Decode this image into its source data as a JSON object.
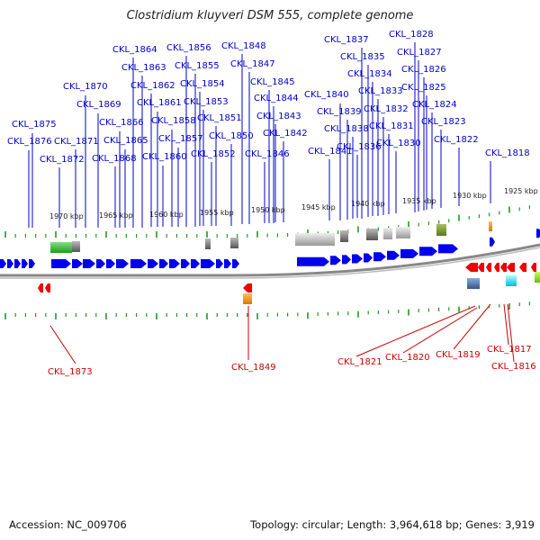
{
  "title": "Clostridium kluyveri DSM 555, complete genome",
  "footer": {
    "accession": "Accession: NC_009706",
    "info": "Topology: circular; Length: 3,964,618 bp; Genes: 3,919"
  },
  "colors": {
    "forward_gene": "#0000ee",
    "reverse_gene": "#ee0000",
    "forward_label": "#0000cc",
    "reverse_label": "#cc0000",
    "tick": "#229922",
    "backbone": "#888888"
  },
  "kbp_labels": [
    "1970 kbp",
    "1965 kbp",
    "1960 kbp",
    "1955 kbp",
    "1950 kbp",
    "1945 kbp",
    "1940 kbp",
    "1935 kbp",
    "1930 kbp",
    "1925 kbp"
  ],
  "top_labels": [
    "CKL_1875",
    "CKL_1876",
    "CKL_1872",
    "CKL_1871",
    "CKL_1870",
    "CKL_1869",
    "CKL_1868",
    "CKL_1866",
    "CKL_1865",
    "CKL_1864",
    "CKL_1863",
    "CKL_1862",
    "CKL_1861",
    "CKL_1860",
    "CKL_1858",
    "CKL_1857",
    "CKL_1856",
    "CKL_1855",
    "CKL_1854",
    "CKL_1853",
    "CKL_1851",
    "CKL_1852",
    "CKL_1850",
    "CKL_1848",
    "CKL_1847",
    "CKL_1846",
    "CKL_1845",
    "CKL_1844",
    "CKL_1843",
    "CKL_1842",
    "CKL_1841",
    "CKL_1840",
    "CKL_1839",
    "CKL_1838",
    "CKL_1837",
    "CKL_1836",
    "CKL_1835",
    "CKL_1834",
    "CKL_1833",
    "CKL_1832",
    "CKL_1831",
    "CKL_1830",
    "CKL_1828",
    "CKL_1827",
    "CKL_1826",
    "CKL_1825",
    "CKL_1824",
    "CKL_1823",
    "CKL_1822",
    "CKL_1818"
  ],
  "bottom_labels": [
    "CKL_1873",
    "CKL_1849",
    "CKL_1821",
    "CKL_1820",
    "CKL_1819",
    "CKL_1817",
    "CKL_1816"
  ]
}
